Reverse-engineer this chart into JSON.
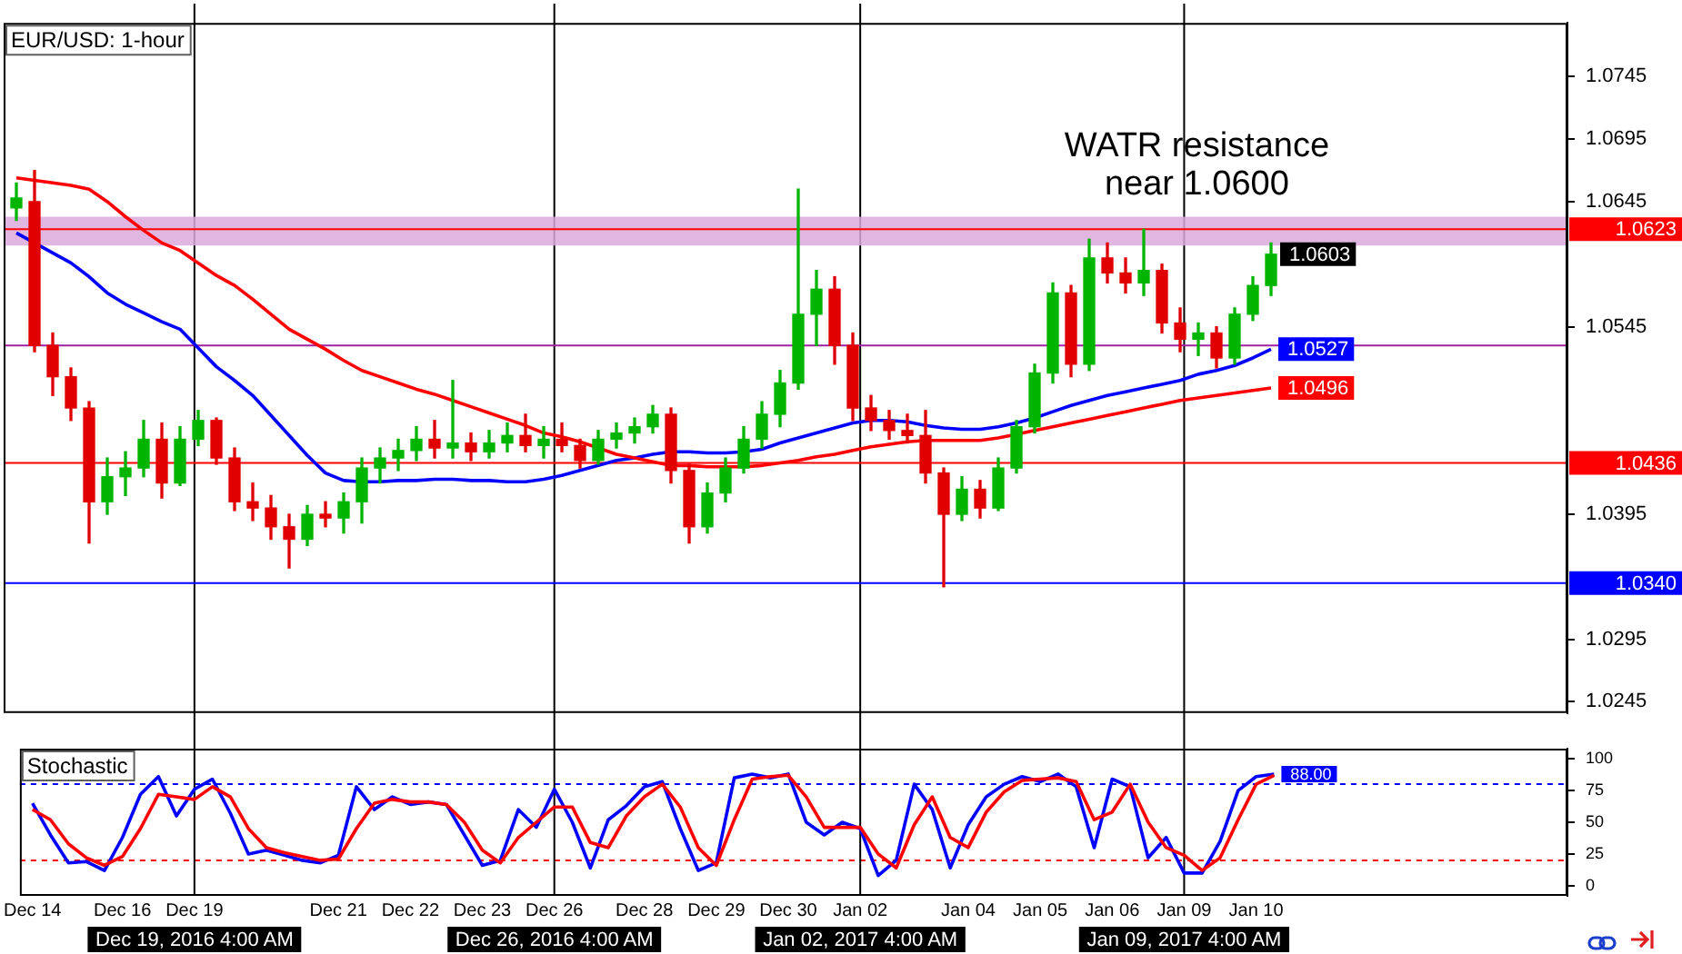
{
  "chart_data": [
    {
      "type": "candlestick",
      "title": "EUR/USD: 1-hour",
      "tick_labels": "y",
      "grid": false,
      "legend": false,
      "categories": [
        null,
        null,
        null,
        null,
        null,
        null,
        null,
        null,
        null,
        null,
        null,
        null,
        null,
        null,
        null,
        null,
        null,
        null,
        null,
        null,
        null,
        null,
        null,
        null,
        null,
        null,
        null,
        null,
        null,
        null,
        null,
        null,
        null,
        null,
        null,
        null,
        null,
        null,
        null,
        null,
        null,
        null,
        null,
        null,
        null,
        null,
        null,
        null,
        null,
        null,
        null,
        null,
        null,
        null,
        null,
        null,
        null,
        null,
        null,
        null,
        null,
        null,
        null,
        null,
        null,
        null,
        null,
        null,
        null,
        null
      ],
      "ohlc": [
        [
          1.064,
          1.066,
          1.063,
          1.0648
        ],
        [
          1.0645,
          1.067,
          1.0525,
          1.053
        ],
        [
          1.053,
          1.054,
          1.049,
          1.0505
        ],
        [
          1.0505,
          1.0512,
          1.047,
          1.048
        ],
        [
          1.048,
          1.0485,
          1.0372,
          1.0405
        ],
        [
          1.0405,
          1.044,
          1.0395,
          1.0425
        ],
        [
          1.0425,
          1.0445,
          1.041,
          1.0432
        ],
        [
          1.0432,
          1.047,
          1.0425,
          1.0455
        ],
        [
          1.0455,
          1.0468,
          1.0408,
          1.042
        ],
        [
          1.042,
          1.0465,
          1.0418,
          1.0455
        ],
        [
          1.0455,
          1.0478,
          1.045,
          1.047
        ],
        [
          1.047,
          1.0472,
          1.0435,
          1.044
        ],
        [
          1.044,
          1.0448,
          1.0398,
          1.0405
        ],
        [
          1.0405,
          1.042,
          1.039,
          1.04
        ],
        [
          1.04,
          1.041,
          1.0375,
          1.0385
        ],
        [
          1.0385,
          1.0395,
          1.0352,
          1.0375
        ],
        [
          1.0375,
          1.0402,
          1.037,
          1.0395
        ],
        [
          1.0395,
          1.0405,
          1.0385,
          1.0392
        ],
        [
          1.0392,
          1.0412,
          1.038,
          1.0405
        ],
        [
          1.0405,
          1.044,
          1.0388,
          1.0432
        ],
        [
          1.0432,
          1.0448,
          1.042,
          1.044
        ],
        [
          1.044,
          1.0455,
          1.043,
          1.0446
        ],
        [
          1.0446,
          1.0465,
          1.0438,
          1.0455
        ],
        [
          1.0455,
          1.047,
          1.044,
          1.0448
        ],
        [
          1.0448,
          1.0502,
          1.044,
          1.0452
        ],
        [
          1.0452,
          1.046,
          1.0438,
          1.0445
        ],
        [
          1.0445,
          1.0462,
          1.044,
          1.0452
        ],
        [
          1.0452,
          1.0468,
          1.0445,
          1.0458
        ],
        [
          1.0458,
          1.0475,
          1.0445,
          1.045
        ],
        [
          1.045,
          1.0465,
          1.044,
          1.0455
        ],
        [
          1.0455,
          1.0468,
          1.0445,
          1.045
        ],
        [
          1.045,
          1.0455,
          1.0432,
          1.0438
        ],
        [
          1.0438,
          1.0462,
          1.0435,
          1.0455
        ],
        [
          1.0455,
          1.0468,
          1.0448,
          1.046
        ],
        [
          1.046,
          1.0472,
          1.0452,
          1.0465
        ],
        [
          1.0465,
          1.0482,
          1.046,
          1.0475
        ],
        [
          1.0475,
          1.048,
          1.042,
          1.043
        ],
        [
          1.043,
          1.0435,
          1.0372,
          1.0385
        ],
        [
          1.0385,
          1.042,
          1.038,
          1.0412
        ],
        [
          1.0412,
          1.044,
          1.0405,
          1.0432
        ],
        [
          1.0432,
          1.0465,
          1.0428,
          1.0455
        ],
        [
          1.0455,
          1.0485,
          1.0448,
          1.0475
        ],
        [
          1.0475,
          1.051,
          1.0465,
          1.05
        ],
        [
          1.05,
          1.0655,
          1.0495,
          1.0555
        ],
        [
          1.0555,
          1.059,
          1.053,
          1.0575
        ],
        [
          1.0575,
          1.0585,
          1.0515,
          1.053
        ],
        [
          1.053,
          1.054,
          1.047,
          1.048
        ],
        [
          1.048,
          1.049,
          1.0462,
          1.047
        ],
        [
          1.047,
          1.0478,
          1.0455,
          1.0462
        ],
        [
          1.0462,
          1.0475,
          1.0452,
          1.0458
        ],
        [
          1.0458,
          1.0478,
          1.042,
          1.0428
        ],
        [
          1.0428,
          1.0432,
          1.0337,
          1.0395
        ],
        [
          1.0395,
          1.0425,
          1.039,
          1.0415
        ],
        [
          1.0415,
          1.0422,
          1.0392,
          1.04
        ],
        [
          1.04,
          1.044,
          1.0398,
          1.0432
        ],
        [
          1.0432,
          1.047,
          1.0428,
          1.0465
        ],
        [
          1.0465,
          1.0515,
          1.046,
          1.0508
        ],
        [
          1.0508,
          1.058,
          1.05,
          1.0572
        ],
        [
          1.0572,
          1.0578,
          1.0505,
          1.0515
        ],
        [
          1.0515,
          1.0615,
          1.051,
          1.06
        ],
        [
          1.06,
          1.0612,
          1.058,
          1.0588
        ],
        [
          1.0588,
          1.06,
          1.0572,
          1.058
        ],
        [
          1.058,
          1.0623,
          1.057,
          1.059
        ],
        [
          1.059,
          1.0595,
          1.054,
          1.0548
        ],
        [
          1.0548,
          1.056,
          1.0525,
          1.0535
        ],
        [
          1.0535,
          1.0548,
          1.0522,
          1.054
        ],
        [
          1.054,
          1.0545,
          1.0512,
          1.052
        ],
        [
          1.052,
          1.056,
          1.0515,
          1.0555
        ],
        [
          1.0555,
          1.0585,
          1.055,
          1.0578
        ],
        [
          1.0578,
          1.0612,
          1.057,
          1.0603
        ]
      ],
      "series": [
        {
          "type": "line",
          "color": "#ff0000",
          "values": [
            1.0664,
            1.0662,
            1.066,
            1.0658,
            1.0655,
            1.0645,
            1.0633,
            1.0622,
            1.0612,
            1.0606,
            1.0596,
            1.0586,
            1.0578,
            1.0567,
            1.0555,
            1.0543,
            1.0535,
            1.0527,
            1.0518,
            1.051,
            1.0505,
            1.05,
            1.0495,
            1.0491,
            1.0486,
            1.0481,
            1.0476,
            1.0471,
            1.0466,
            1.046,
            1.0457,
            1.0453,
            1.0448,
            1.0443,
            1.044,
            1.0437,
            1.0434,
            1.0434,
            1.0433,
            1.0433,
            1.0433,
            1.0434,
            1.0436,
            1.0438,
            1.0441,
            1.0443,
            1.0446,
            1.0449,
            1.0451,
            1.0453,
            1.0454,
            1.0454,
            1.0454,
            1.0454,
            1.0456,
            1.0459,
            1.0462,
            1.0465,
            1.0468,
            1.0471,
            1.0474,
            1.0477,
            1.048,
            1.0483,
            1.0486,
            1.0488,
            1.049,
            1.0492,
            1.0494,
            1.0496
          ],
          "value_labels": [
            null,
            null,
            null,
            null,
            null,
            null,
            null,
            null,
            null,
            null,
            null,
            null,
            null,
            null,
            null,
            null,
            null,
            null,
            null,
            null,
            null,
            null,
            null,
            null,
            null,
            null,
            null,
            null,
            null,
            null,
            null,
            null,
            null,
            null,
            null,
            null,
            null,
            null,
            null,
            null,
            null,
            null,
            null,
            null,
            null,
            null,
            null,
            null,
            null,
            null,
            null,
            null,
            null,
            null,
            null,
            null,
            null,
            null,
            null,
            null,
            null,
            null,
            null,
            null,
            null,
            null,
            null,
            null,
            null,
            "1.0496"
          ]
        },
        {
          "type": "line",
          "color": "#0000ff",
          "values": [
            1.062,
            1.0612,
            1.0604,
            1.0596,
            1.0585,
            1.0572,
            1.0563,
            1.0556,
            1.0549,
            1.0543,
            1.0528,
            1.0513,
            1.0502,
            1.049,
            1.0474,
            1.0458,
            1.0442,
            1.0428,
            1.0422,
            1.0421,
            1.0421,
            1.0422,
            1.0422,
            1.0423,
            1.0423,
            1.0422,
            1.0422,
            1.0421,
            1.0421,
            1.0423,
            1.0426,
            1.043,
            1.0434,
            1.0438,
            1.044,
            1.0443,
            1.0445,
            1.0445,
            1.0444,
            1.0444,
            1.0445,
            1.0447,
            1.0452,
            1.0456,
            1.046,
            1.0464,
            1.0468,
            1.047,
            1.047,
            1.0469,
            1.0466,
            1.0464,
            1.0463,
            1.0463,
            1.0465,
            1.0468,
            1.0472,
            1.0477,
            1.0482,
            1.0486,
            1.049,
            1.0493,
            1.0496,
            1.0499,
            1.0502,
            1.0507,
            1.051,
            1.0514,
            1.052,
            1.0527
          ],
          "value_labels": [
            null,
            null,
            null,
            null,
            null,
            null,
            null,
            null,
            null,
            null,
            null,
            null,
            null,
            null,
            null,
            null,
            null,
            null,
            null,
            null,
            null,
            null,
            null,
            null,
            null,
            null,
            null,
            null,
            null,
            null,
            null,
            null,
            null,
            null,
            null,
            null,
            null,
            null,
            null,
            null,
            null,
            null,
            null,
            null,
            null,
            null,
            null,
            null,
            null,
            null,
            null,
            null,
            null,
            null,
            null,
            null,
            null,
            null,
            null,
            null,
            null,
            null,
            null,
            null,
            null,
            null,
            null,
            null,
            null,
            "1.0527"
          ]
        }
      ],
      "ylim": [
        1.0236,
        1.0788
      ],
      "yticks": [
        1.0245,
        1.0295,
        1.0395,
        1.0545,
        1.0645,
        1.0695,
        1.0745
      ],
      "bands": [
        {
          "axis": "y",
          "from": 1.061,
          "to": 1.0633,
          "color": "#dcaadc"
        }
      ],
      "ref_lines": [
        {
          "axis": "y",
          "value": 1.0623,
          "label": "1.0623",
          "color": "#ff0000"
        },
        {
          "axis": "y",
          "value": 1.053,
          "color": "#a020a0"
        },
        {
          "axis": "y",
          "value": 1.0436,
          "label": "1.0436",
          "color": "#ff0000"
        },
        {
          "axis": "y",
          "value": 1.034,
          "label": "1.0340",
          "color": "#0000ff"
        }
      ],
      "annotations": [
        "WATR resistance near 1.0600",
        "1.0603"
      ]
    },
    {
      "type": "line",
      "title": "Stochastic",
      "grid": false,
      "categories": [
        "Dec 14",
        null,
        null,
        null,
        null,
        "Dec 16",
        null,
        null,
        null,
        "Dec 19",
        null,
        null,
        null,
        null,
        null,
        null,
        null,
        "Dec 21",
        null,
        null,
        null,
        "Dec 22",
        null,
        null,
        null,
        "Dec 23",
        null,
        null,
        null,
        "Dec 26",
        null,
        null,
        null,
        null,
        "Dec 28",
        null,
        null,
        null,
        "Dec 29",
        null,
        null,
        null,
        "Dec 30",
        null,
        null,
        null,
        "Jan 02",
        null,
        null,
        null,
        null,
        null,
        "Jan 04",
        null,
        null,
        null,
        "Jan 05",
        null,
        null,
        null,
        "Jan 06",
        null,
        null,
        null,
        "Jan 09",
        null,
        null,
        null,
        "Jan 10",
        null
      ],
      "series": [
        {
          "color": "#ff0000",
          "values": [
            60,
            52,
            33,
            22,
            16,
            23,
            45,
            72,
            70,
            68,
            78,
            70,
            45,
            30,
            26,
            23,
            20,
            21,
            45,
            65,
            68,
            66,
            66,
            64,
            50,
            28,
            18,
            38,
            50,
            62,
            62,
            34,
            30,
            55,
            70,
            80,
            62,
            30,
            16,
            52,
            84,
            86,
            87,
            70,
            46,
            46,
            46,
            25,
            14,
            48,
            70,
            38,
            30,
            58,
            74,
            83,
            84,
            85,
            82,
            52,
            58,
            80,
            50,
            30,
            24,
            12,
            22,
            52,
            80,
            87
          ]
        },
        {
          "color": "#0000ff",
          "values": [
            65,
            40,
            18,
            19,
            12,
            38,
            72,
            86,
            55,
            76,
            84,
            57,
            25,
            28,
            24,
            20,
            18,
            24,
            78,
            60,
            70,
            64,
            66,
            64,
            40,
            16,
            20,
            60,
            46,
            76,
            50,
            14,
            52,
            63,
            78,
            82,
            45,
            12,
            18,
            85,
            88,
            85,
            88,
            50,
            40,
            50,
            45,
            8,
            20,
            80,
            60,
            14,
            48,
            70,
            80,
            86,
            82,
            88,
            78,
            30,
            84,
            78,
            22,
            38,
            10,
            10,
            35,
            75,
            86,
            88
          ],
          "value_labels": [
            null,
            null,
            null,
            null,
            null,
            null,
            null,
            null,
            null,
            null,
            null,
            null,
            null,
            null,
            null,
            null,
            null,
            null,
            null,
            null,
            null,
            null,
            null,
            null,
            null,
            null,
            null,
            null,
            null,
            null,
            null,
            null,
            null,
            null,
            null,
            null,
            null,
            null,
            null,
            null,
            null,
            null,
            null,
            null,
            null,
            null,
            null,
            null,
            null,
            null,
            null,
            null,
            null,
            null,
            null,
            null,
            null,
            null,
            null,
            null,
            null,
            null,
            null,
            null,
            null,
            null,
            null,
            null,
            null,
            "88.00"
          ]
        }
      ],
      "ylim": [
        -8,
        108
      ],
      "yticks": [
        0,
        25,
        50,
        75,
        100
      ],
      "ref_lines": [
        {
          "axis": "y",
          "value": 80,
          "color": "#0000ff",
          "line_style": "dashed"
        },
        {
          "axis": "y",
          "value": 20,
          "color": "#ff0000",
          "line_style": "dashed"
        },
        {
          "axis": "x",
          "value": "Dec 19",
          "label": "Dec 19, 2016 4:00 AM",
          "color": "#000000"
        },
        {
          "axis": "x",
          "value": "Dec 26",
          "label": "Dec 26, 2016 4:00 AM",
          "color": "#000000"
        },
        {
          "axis": "x",
          "value": "Jan 02",
          "label": "Jan 02, 2017 4:00 AM",
          "color": "#000000"
        },
        {
          "axis": "x",
          "value": "Jan 09",
          "label": "Jan 09, 2017 4:00 AM",
          "color": "#000000"
        }
      ],
      "legend": false
    }
  ]
}
